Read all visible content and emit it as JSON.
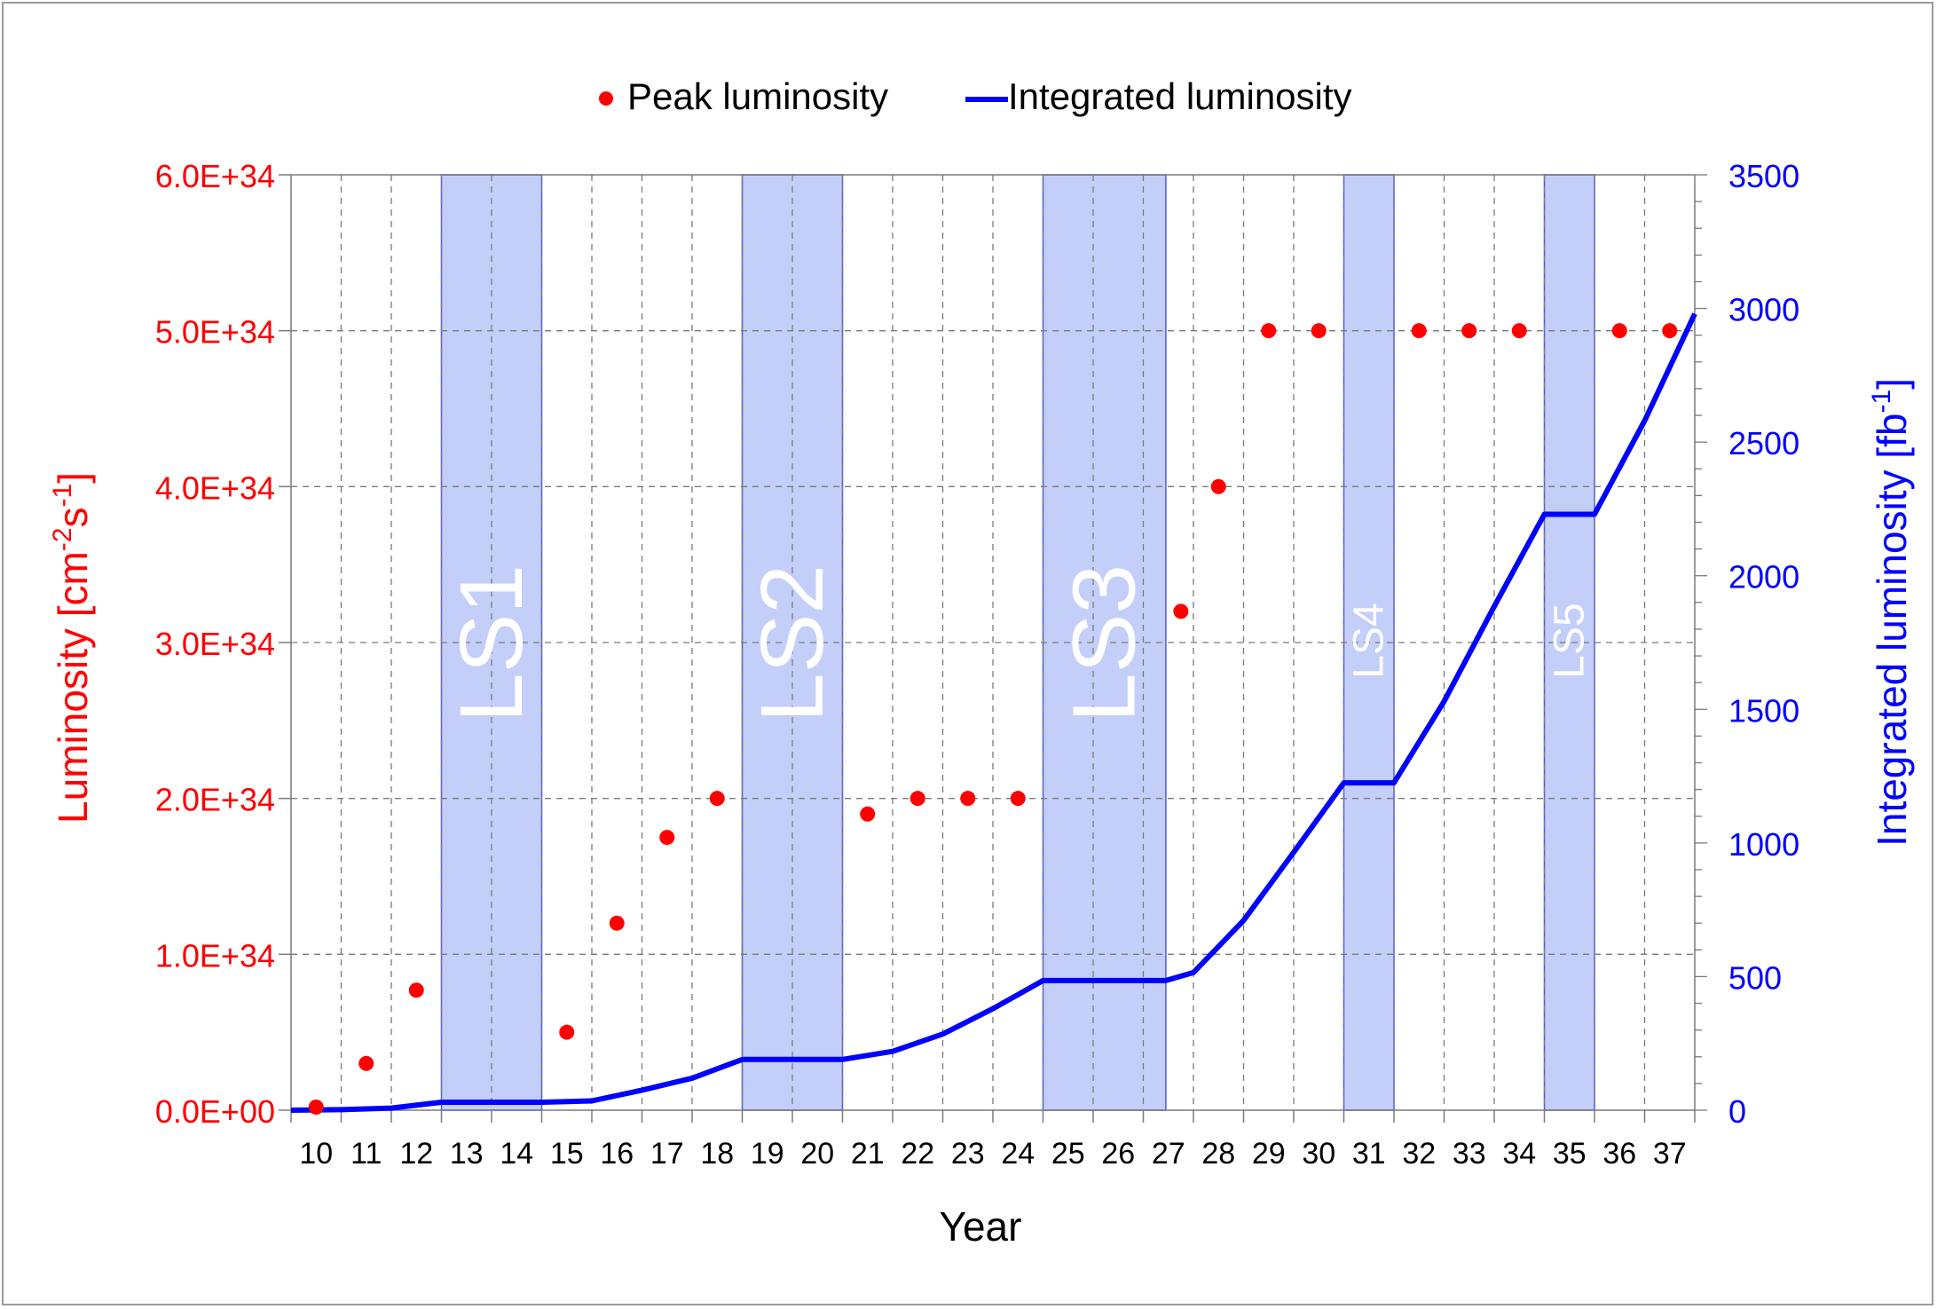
{
  "chart_data": {
    "type": "scatter+line",
    "xlabel": "Year",
    "x_ticks": [
      "10",
      "11",
      "12",
      "13",
      "14",
      "15",
      "16",
      "17",
      "18",
      "19",
      "20",
      "21",
      "22",
      "23",
      "24",
      "25",
      "26",
      "27",
      "28",
      "29",
      "30",
      "31",
      "32",
      "33",
      "34",
      "35",
      "36",
      "37"
    ],
    "legend": {
      "placement": "top-center",
      "peak_label": "Peak luminosity",
      "integrated_label": "Integrated luminosity"
    },
    "left_axis": {
      "label_main": "Luminosity [cm",
      "label_sup1": "-2",
      "label_mid": "s",
      "label_sup2": "-1",
      "label_end": "]",
      "color": "#ff0000",
      "ylim": [
        0,
        6e+34
      ],
      "ticks": [
        0,
        1e+34,
        2e+34,
        3e+34,
        4e+34,
        5e+34,
        6e+34
      ],
      "tick_labels": [
        "0.0E+00",
        "1.0E+34",
        "2.0E+34",
        "3.0E+34",
        "4.0E+34",
        "5.0E+34",
        "6.0E+34"
      ]
    },
    "right_axis": {
      "label_main": "Integrated luminosity [fb",
      "label_sup": "-1",
      "label_end": "]",
      "color": "#0000ff",
      "ylim": [
        0,
        3500
      ],
      "ticks": [
        0,
        500,
        1000,
        1500,
        2000,
        2500,
        3000,
        3500
      ],
      "tick_labels": [
        "0",
        "500",
        "1000",
        "1500",
        "2000",
        "2500",
        "3000",
        "3500"
      ]
    },
    "shutdowns": [
      {
        "name": "LS1",
        "start": 12.5,
        "end": 14.5,
        "font": "large"
      },
      {
        "name": "LS2",
        "start": 18.5,
        "end": 20.5,
        "font": "large"
      },
      {
        "name": "LS3",
        "start": 24.5,
        "end": 26.95,
        "font": "large"
      },
      {
        "name": "LS4",
        "start": 30.5,
        "end": 31.5,
        "font": "small"
      },
      {
        "name": "LS5",
        "start": 34.5,
        "end": 35.5,
        "font": "small"
      }
    ],
    "series": [
      {
        "name": "Peak luminosity",
        "axis": "left",
        "style": "markers",
        "color": "#ff0000",
        "x": [
          10,
          11,
          12,
          15,
          16,
          17,
          18,
          21,
          22,
          23,
          24,
          27.25,
          28,
          29,
          30,
          32,
          33,
          34,
          36,
          37
        ],
        "values": [
          2e+32,
          3e+33,
          7.7e+33,
          5e+33,
          1.2e+34,
          1.75e+34,
          2e+34,
          1.9e+34,
          2e+34,
          2e+34,
          2e+34,
          3.2e+34,
          4e+34,
          5e+34,
          5e+34,
          5e+34,
          5e+34,
          5e+34,
          5e+34,
          5e+34
        ]
      },
      {
        "name": "Integrated luminosity",
        "axis": "right",
        "style": "line",
        "color": "#0000ff",
        "x": [
          9.5,
          10.5,
          11.5,
          12.5,
          14.5,
          15.5,
          16.5,
          17.5,
          18.5,
          20.5,
          21.5,
          22.5,
          23.5,
          24.5,
          26.95,
          27.5,
          28.5,
          29.5,
          30.5,
          31.5,
          32.5,
          33.5,
          34.5,
          35.5,
          36.5,
          37.5
        ],
        "values": [
          0,
          2,
          8,
          30,
          30,
          35,
          75,
          120,
          190,
          190,
          220,
          285,
          380,
          485,
          485,
          515,
          710,
          965,
          1225,
          1225,
          1530,
          1885,
          2230,
          2230,
          2580,
          2980
        ]
      }
    ]
  }
}
